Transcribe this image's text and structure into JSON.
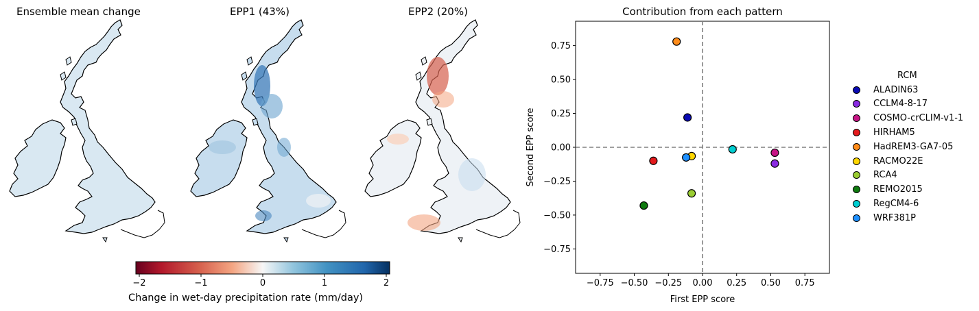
{
  "maps": [
    {
      "title": "Ensemble mean change",
      "tone": "uniform"
    },
    {
      "title": "EPP1 (43%)",
      "tone": "blue"
    },
    {
      "title": "EPP2 (20%)",
      "tone": "red"
    }
  ],
  "colorbar": {
    "label": "Change in wet-day precipitation rate (mm/day)",
    "ticks": [
      "−2",
      "−1",
      "0",
      "1",
      "2"
    ],
    "colormap": "RdBu",
    "range": [
      -2,
      2
    ]
  },
  "chart_data": {
    "type": "scatter",
    "title": "Contribution from each pattern",
    "xlabel": "First EPP score",
    "ylabel": "Second EPP score",
    "xlim": [
      -0.93,
      0.93
    ],
    "ylim": [
      -0.93,
      0.93
    ],
    "xticks": [
      -0.75,
      -0.5,
      -0.25,
      0.0,
      0.25,
      0.5,
      0.75
    ],
    "yticks": [
      -0.75,
      -0.5,
      -0.25,
      0.0,
      0.25,
      0.5,
      0.75
    ],
    "xtick_labels": [
      "−0.75",
      "−0.50",
      "−0.25",
      "0.00",
      "0.25",
      "0.50",
      "0.75"
    ],
    "ytick_labels": [
      "−0.75",
      "−0.50",
      "−0.25",
      "0.00",
      "0.25",
      "0.50",
      "0.75"
    ],
    "reference_lines": {
      "x": 0,
      "y": 0,
      "style": "dashed"
    },
    "legend_title": "RCM",
    "legend_position": "right",
    "points": [
      {
        "name": "ALADIN63",
        "x": -0.11,
        "y": 0.22,
        "color": "#0a0ab4"
      },
      {
        "name": "CCLM4-8-17",
        "x": 0.53,
        "y": -0.12,
        "color": "#8a2be2"
      },
      {
        "name": "COSMO-crCLIM-v1-1",
        "x": 0.53,
        "y": -0.04,
        "color": "#c71585"
      },
      {
        "name": "HIRHAM5",
        "x": -0.36,
        "y": -0.1,
        "color": "#e31a1c"
      },
      {
        "name": "HadREM3-GA7-05",
        "x": -0.19,
        "y": 0.78,
        "color": "#ff8c1a"
      },
      {
        "name": "RACMO22E",
        "x": -0.08,
        "y": -0.065,
        "color": "#ffd700"
      },
      {
        "name": "RCA4",
        "x": -0.08,
        "y": -0.34,
        "color": "#9acd32"
      },
      {
        "name": "REMO2015",
        "x": -0.43,
        "y": -0.43,
        "color": "#0f7a0f"
      },
      {
        "name": "RegCM4-6",
        "x": 0.22,
        "y": -0.015,
        "color": "#00ced1"
      },
      {
        "name": "WRF381P",
        "x": -0.12,
        "y": -0.075,
        "color": "#1e90ff"
      }
    ]
  }
}
